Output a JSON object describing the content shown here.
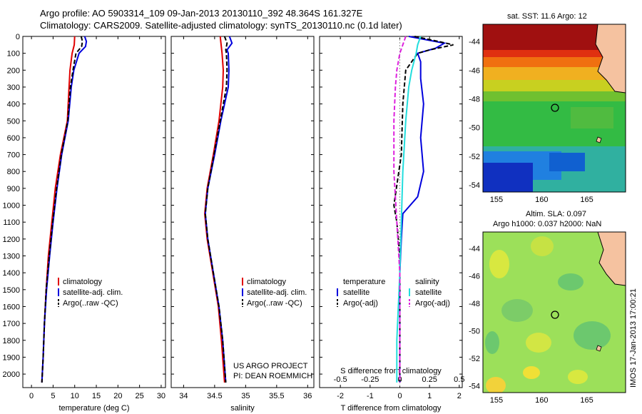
{
  "header": {
    "line1": "Argo profile: AO 5903314_109 09-Jan-2013 20130110_392 48.364S 161.327E",
    "line2": "Climatology: CARS2009. Satellite-adjusted climatology: synTS_20130110.nc (0.1d later)"
  },
  "credits": {
    "project": "US ARGO PROJECT",
    "pi": "PI: DEAN ROEMMICH"
  },
  "stamp": "IMOS 17-Jan-2013 17:00:21",
  "colors": {
    "climatology": "#e00000",
    "satellite": "#0000dd",
    "argo": "#000000",
    "sat_salinity": "#22dddd",
    "argo_salinity": "#dd22dd"
  },
  "chart_data": [
    {
      "type": "line",
      "xlabel": "temperature (deg C)",
      "ylabel": "",
      "xlim": [
        -2,
        31
      ],
      "ylim": [
        2080,
        0
      ],
      "xticks": [
        0,
        5,
        10,
        15,
        20,
        25,
        30
      ],
      "yticks": [
        0,
        100,
        200,
        300,
        400,
        500,
        600,
        700,
        800,
        900,
        1000,
        1100,
        1200,
        1300,
        1400,
        1500,
        1600,
        1700,
        1800,
        1900,
        2000
      ],
      "legend": [
        "climatology",
        "satellite-adj. clim.",
        "Argo(..raw -QC)"
      ],
      "series": [
        {
          "name": "climatology",
          "depth": [
            0,
            50,
            100,
            200,
            300,
            500,
            700,
            900,
            1100,
            1300,
            1500,
            1700,
            1900,
            2050
          ],
          "values": [
            10.0,
            9.9,
            9.4,
            8.9,
            8.7,
            8.3,
            6.7,
            5.5,
            4.7,
            3.9,
            3.4,
            3.0,
            2.7,
            2.4
          ]
        },
        {
          "name": "satellite-adj. clim.",
          "depth": [
            0,
            30,
            60,
            100,
            200,
            300,
            500,
            700,
            900,
            1100,
            1300,
            1500,
            1700,
            1900,
            2050
          ],
          "values": [
            12.3,
            12.7,
            12.5,
            11.0,
            9.8,
            9.2,
            8.5,
            7.0,
            5.9,
            5.0,
            4.2,
            3.5,
            3.0,
            2.7,
            2.4
          ]
        },
        {
          "name": "Argo(..raw -QC)",
          "depth": [
            0,
            30,
            60,
            100,
            200,
            300,
            500,
            700,
            900,
            1100,
            1300,
            1500,
            1700,
            1900,
            2050
          ],
          "values": [
            11.5,
            11.8,
            11.6,
            10.3,
            9.6,
            9.0,
            8.4,
            6.9,
            5.8,
            4.9,
            4.1,
            3.4,
            3.0,
            2.7,
            2.4
          ]
        }
      ]
    },
    {
      "type": "line",
      "xlabel": "salinity",
      "ylabel": "",
      "xlim": [
        33.8,
        36.1
      ],
      "ylim": [
        2080,
        0
      ],
      "xticks": [
        34,
        34.5,
        35,
        35.5,
        36
      ],
      "legend": [
        "climatology",
        "satellite-adj. clim.",
        "Argo(..raw -QC)"
      ],
      "series": [
        {
          "name": "climatology",
          "depth": [
            0,
            100,
            200,
            300,
            500,
            700,
            900,
            1050,
            1200,
            1400,
            1600,
            1800,
            2050
          ],
          "values": [
            34.59,
            34.62,
            34.64,
            34.63,
            34.57,
            34.48,
            34.38,
            34.34,
            34.38,
            34.47,
            34.56,
            34.61,
            34.66
          ]
        },
        {
          "name": "satellite-adj. clim.",
          "depth": [
            0,
            40,
            80,
            100,
            200,
            300,
            500,
            700,
            900,
            1050,
            1200,
            1400,
            1600,
            1800,
            2050
          ],
          "values": [
            34.74,
            34.78,
            34.7,
            34.72,
            34.73,
            34.72,
            34.6,
            34.5,
            34.39,
            34.35,
            34.39,
            34.48,
            34.57,
            34.63,
            34.68
          ]
        },
        {
          "name": "Argo(..raw -QC)",
          "depth": [
            0,
            40,
            80,
            100,
            200,
            300,
            500,
            700,
            900,
            1050,
            1200,
            1400,
            1600,
            1800,
            2050
          ],
          "values": [
            34.66,
            34.7,
            34.68,
            34.69,
            34.7,
            34.69,
            34.59,
            34.49,
            34.39,
            34.35,
            34.39,
            34.48,
            34.57,
            34.63,
            34.68
          ]
        }
      ]
    },
    {
      "type": "line",
      "xlabel": "T difference from climatology",
      "xlabel_top": "S difference from climatology",
      "ylabel": "",
      "xlim": [
        -2.7,
        2.1
      ],
      "ylim": [
        2080,
        0
      ],
      "xticks": [
        -2,
        -1,
        0,
        1,
        2
      ],
      "xticks_top": [
        "-0.5",
        "-0.25",
        "0",
        "0.25",
        "0.5"
      ],
      "legend_titles": [
        "temperature",
        "salinity"
      ],
      "legend": [
        "satellite",
        "Argo(-adj)",
        "satellite",
        "Argo(-adj)"
      ],
      "series": [
        {
          "name": "temperature satellite",
          "depth": [
            0,
            40,
            70,
            100,
            150,
            250,
            400,
            600,
            800,
            950,
            1050,
            1200,
            1400,
            1600,
            1800,
            2050
          ],
          "values": [
            0.3,
            1.5,
            1.2,
            0.6,
            0.7,
            0.7,
            0.8,
            0.7,
            0.8,
            0.6,
            0.1,
            0.05,
            0,
            0,
            0,
            0
          ]
        },
        {
          "name": "temperature Argo(-adj)",
          "depth": [
            0,
            30,
            50,
            80,
            100,
            200,
            400,
            700,
            1000,
            1100,
            1300,
            1500,
            1800,
            2050
          ],
          "values": [
            0.5,
            1.3,
            1.8,
            1.0,
            0.6,
            0.2,
            0.1,
            0.05,
            -0.2,
            -0.1,
            0,
            0,
            0,
            0
          ]
        },
        {
          "name": "salinity satellite",
          "depth": [
            0,
            50,
            100,
            200,
            300,
            500,
            800,
            1100,
            1400,
            1600,
            1800,
            2050
          ],
          "values": [
            0.7,
            0.6,
            0.55,
            0.4,
            0.3,
            0.2,
            0.1,
            0.05,
            0,
            -0.05,
            -0.1,
            -0.1
          ]
        },
        {
          "name": "salinity Argo(-adj)",
          "depth": [
            0,
            100,
            200,
            300,
            500,
            800,
            1100,
            1400,
            1600,
            1800,
            2050
          ],
          "values": [
            0.2,
            0.0,
            -0.1,
            -0.15,
            -0.2,
            -0.2,
            -0.1,
            0,
            0,
            0,
            0
          ]
        }
      ]
    },
    {
      "type": "heatmap",
      "title": "sat. SST: 11.6 Argo: 12",
      "xticks": [
        155,
        160,
        165
      ],
      "yticks": [
        -44,
        -46,
        -48,
        -50,
        -52,
        -54
      ],
      "xlim": [
        153.5,
        169.3
      ],
      "ylim": [
        -54.5,
        -42.8
      ],
      "marker": {
        "lon": 161.327,
        "lat": -48.364
      }
    },
    {
      "type": "heatmap",
      "title_line1": "Altim. SLA: 0.097",
      "title_line2": "Argo h1000: 0.037 h2000: NaN",
      "xticks": [
        155,
        160,
        165
      ],
      "yticks": [
        -44,
        -46,
        -48,
        -50,
        -52,
        -54
      ],
      "xlim": [
        153.5,
        169.3
      ],
      "ylim": [
        -54.5,
        -42.8
      ],
      "marker": {
        "lon": 161.327,
        "lat": -48.364
      }
    }
  ]
}
